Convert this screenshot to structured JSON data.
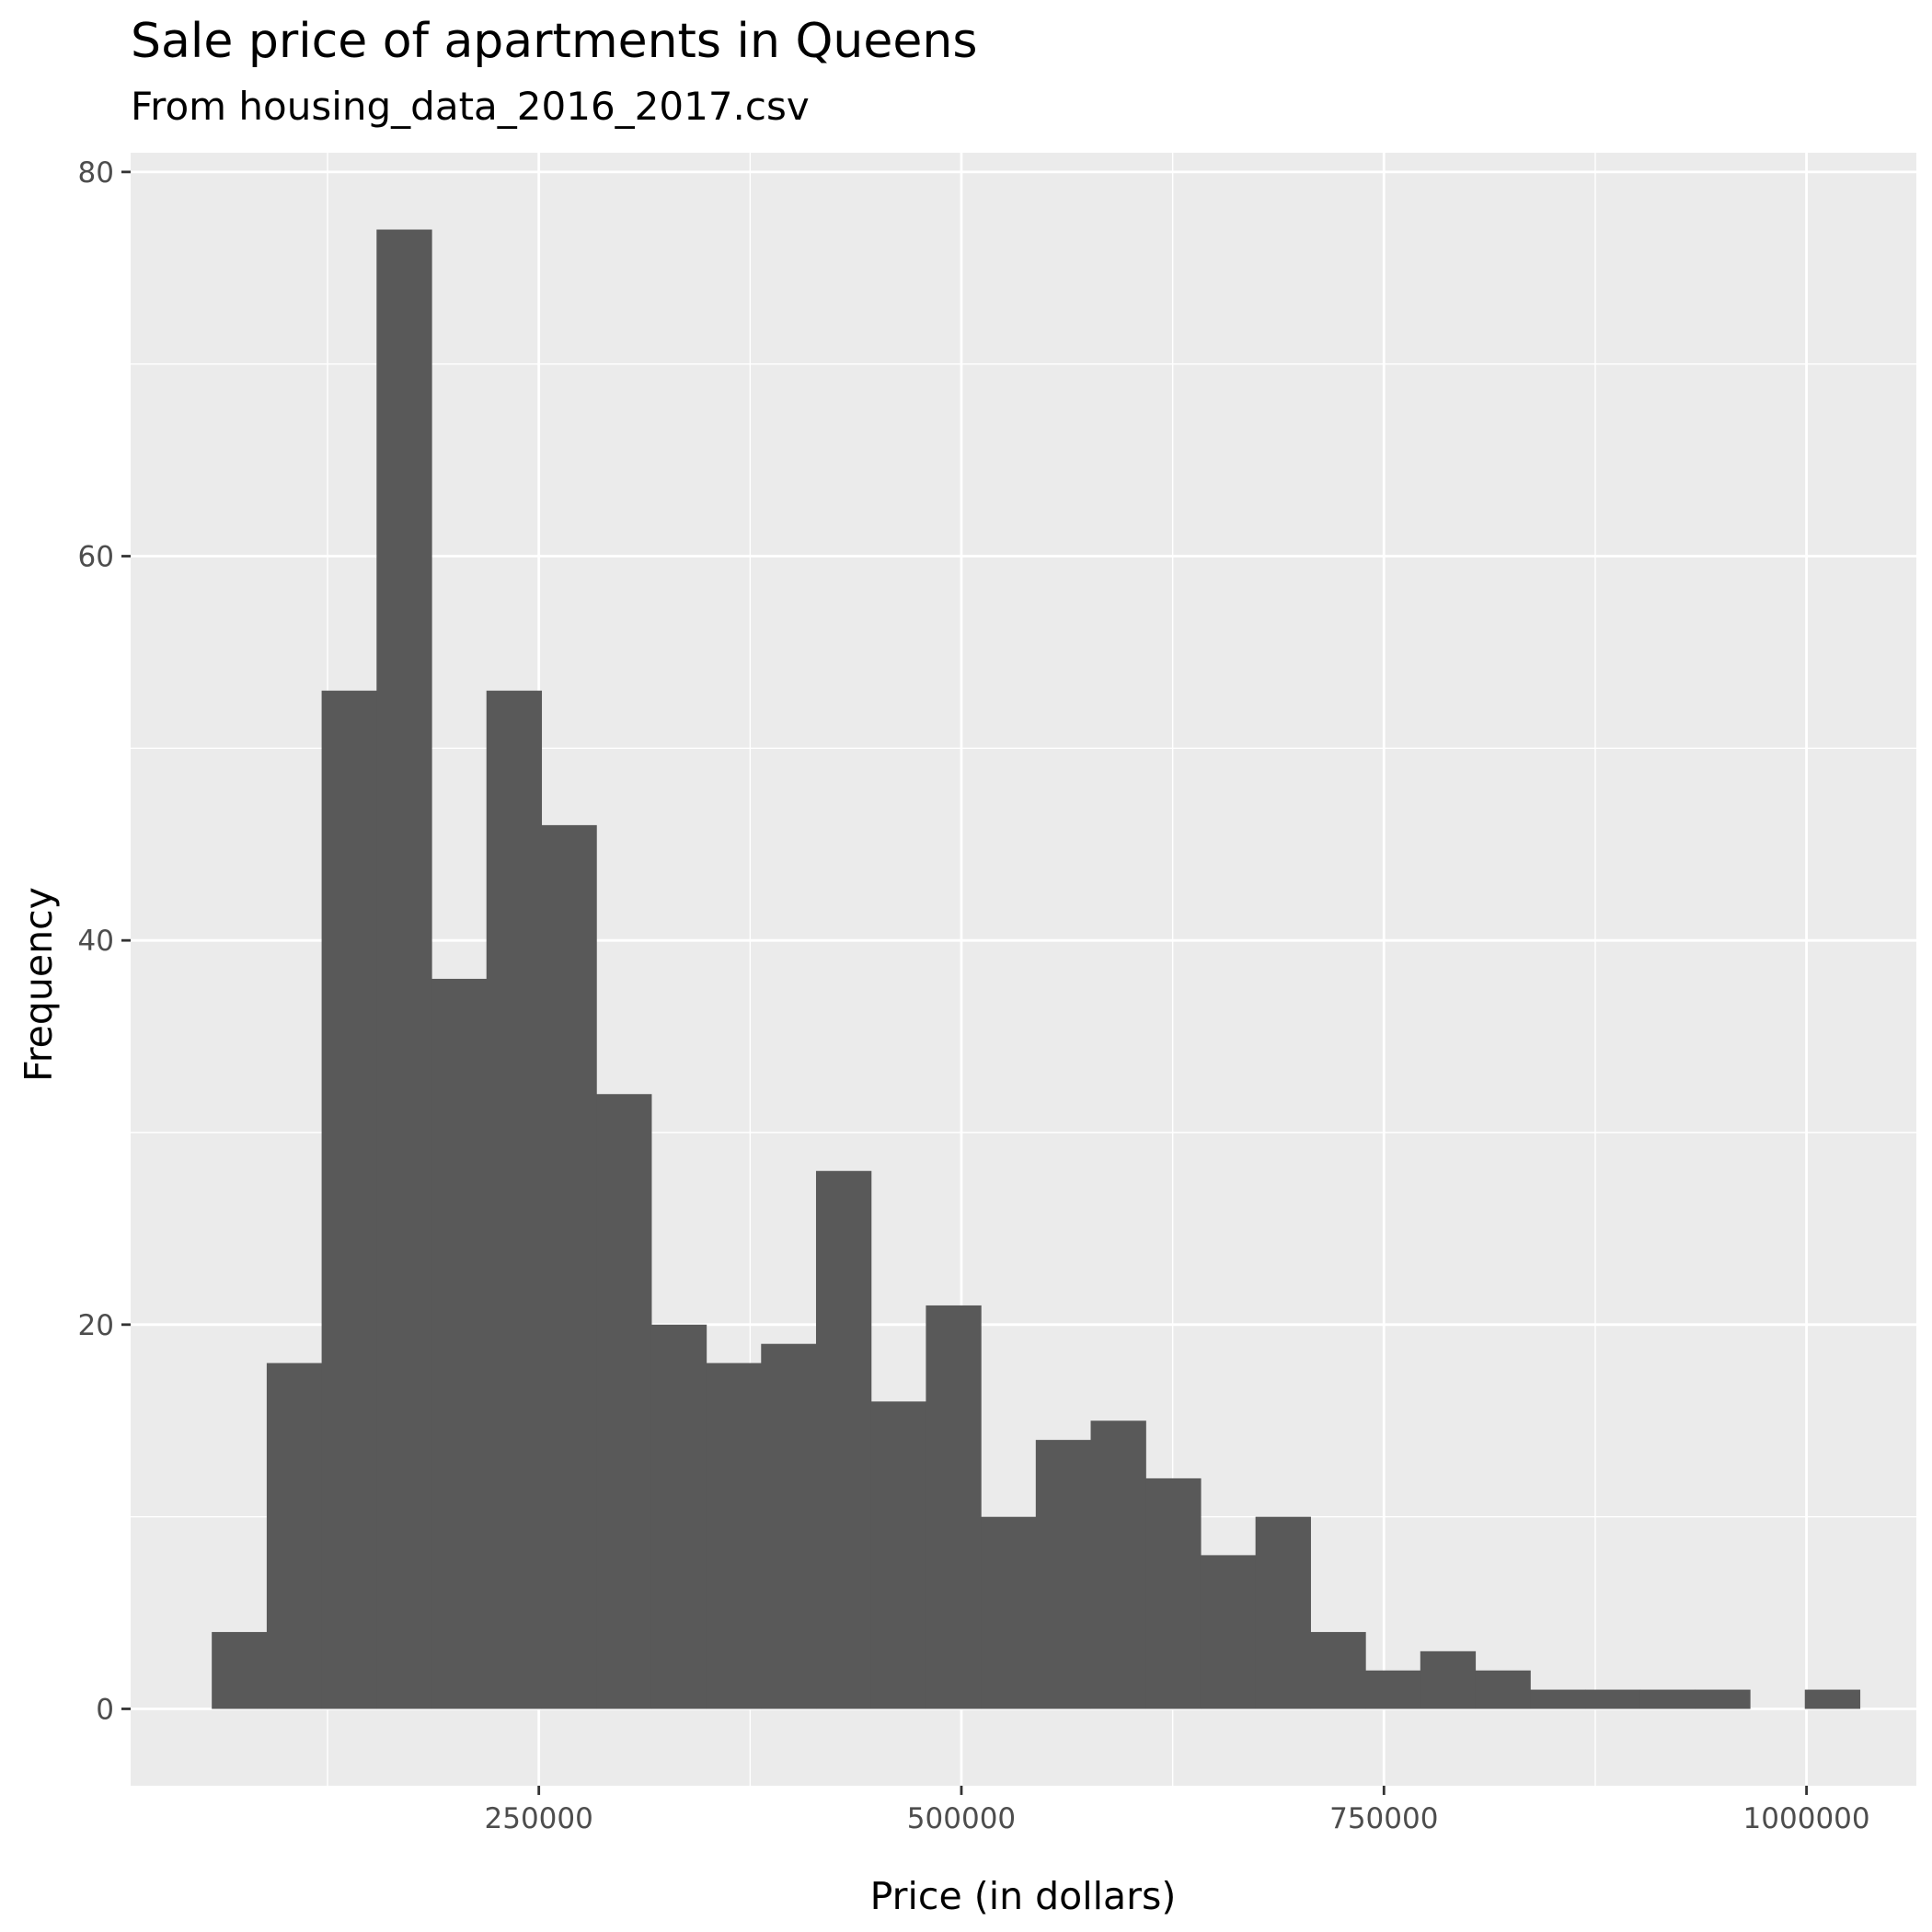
{
  "chart_data": {
    "type": "bar",
    "title": "Sale price of apartments in Queens",
    "subtitle": "From housing_data_2016_2017.csv",
    "xlabel": "Price (in dollars)",
    "ylabel": "Frequency",
    "xlim": [
      8500,
      1065000
    ],
    "ylim": [
      -4,
      81
    ],
    "xticks": [
      250000,
      500000,
      750000,
      1000000
    ],
    "xtick_labels": [
      "250000",
      "500000",
      "750000",
      "1000000"
    ],
    "yticks": [
      0,
      20,
      40,
      60,
      80
    ],
    "ytick_labels": [
      "0",
      "20",
      "40",
      "60",
      "80"
    ],
    "grid": true,
    "legend": "none",
    "bin_edges": [
      56500,
      89000,
      121500,
      154000,
      186500,
      219000,
      251500,
      284000,
      316500,
      349000,
      381500,
      414000,
      446500,
      479000,
      511500,
      544000,
      576500,
      609000,
      641500,
      674000,
      706500,
      739000,
      771500,
      804000,
      836500,
      869000,
      901500,
      934000,
      966500,
      999000,
      1031500
    ],
    "values": [
      4,
      18,
      53,
      77,
      38,
      53,
      46,
      32,
      20,
      18,
      19,
      28,
      16,
      21,
      10,
      14,
      15,
      12,
      8,
      10,
      4,
      2,
      3,
      2,
      1,
      1,
      1,
      1,
      0,
      1
    ],
    "colors": {
      "bar_fill": "#595959",
      "panel_background": "#ebebeb",
      "grid_major": "#ffffff",
      "tick_text": "#4d4d4d",
      "tick_mark": "#333333"
    }
  }
}
